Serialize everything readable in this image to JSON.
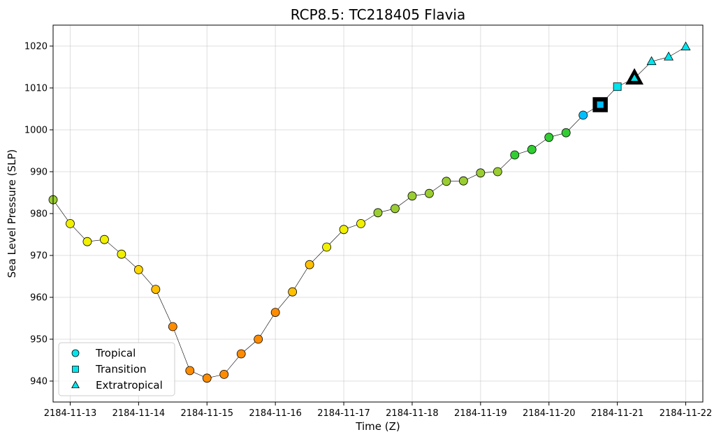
{
  "chart_data": {
    "type": "scatter",
    "title": "RCP8.5: TC218405 Flavia",
    "xlabel": "Time (Z)",
    "ylabel": "Sea Level Pressure (SLP)",
    "x_ticks": [
      "2184-11-13",
      "2184-11-14",
      "2184-11-15",
      "2184-11-16",
      "2184-11-17",
      "2184-11-18",
      "2184-11-19",
      "2184-11-20",
      "2184-11-21",
      "2184-11-22"
    ],
    "y_ticks": [
      940,
      950,
      960,
      970,
      980,
      990,
      1000,
      1010,
      1020
    ],
    "xlim": [
      "2184-11-12 18:00",
      "2184-11-22 06:00"
    ],
    "ylim": [
      935,
      1025
    ],
    "grid": true,
    "legend_position": "lower-left",
    "legend": [
      {
        "label": "Tropical",
        "marker": "circle",
        "color": "#00e5ee"
      },
      {
        "label": "Transition",
        "marker": "square",
        "color": "#00e5ee"
      },
      {
        "label": "Extratropical",
        "marker": "triangle",
        "color": "#00e5ee"
      }
    ],
    "series": [
      {
        "points": [
          {
            "time": "2184-11-12 18:00",
            "slp": 983.3,
            "phase": "tropical",
            "color": "#9acd32"
          },
          {
            "time": "2184-11-13 00:00",
            "slp": 977.6,
            "phase": "tropical",
            "color": "#f0f000"
          },
          {
            "time": "2184-11-13 06:00",
            "slp": 973.3,
            "phase": "tropical",
            "color": "#f0f000"
          },
          {
            "time": "2184-11-13 12:00",
            "slp": 973.8,
            "phase": "tropical",
            "color": "#f0f000"
          },
          {
            "time": "2184-11-13 18:00",
            "slp": 970.3,
            "phase": "tropical",
            "color": "#f0f000"
          },
          {
            "time": "2184-11-14 00:00",
            "slp": 966.6,
            "phase": "tropical",
            "color": "#ffd700"
          },
          {
            "time": "2184-11-14 06:00",
            "slp": 961.9,
            "phase": "tropical",
            "color": "#ffc000"
          },
          {
            "time": "2184-11-14 12:00",
            "slp": 953.0,
            "phase": "tropical",
            "color": "#ff8c00"
          },
          {
            "time": "2184-11-14 18:00",
            "slp": 942.5,
            "phase": "tropical",
            "color": "#ff8c00"
          },
          {
            "time": "2184-11-15 00:00",
            "slp": 940.7,
            "phase": "tropical",
            "color": "#ff8c00"
          },
          {
            "time": "2184-11-15 06:00",
            "slp": 941.6,
            "phase": "tropical",
            "color": "#ff8c00"
          },
          {
            "time": "2184-11-15 12:00",
            "slp": 946.5,
            "phase": "tropical",
            "color": "#ff8c00"
          },
          {
            "time": "2184-11-15 18:00",
            "slp": 950.0,
            "phase": "tropical",
            "color": "#ff8c00"
          },
          {
            "time": "2184-11-16 00:00",
            "slp": 956.4,
            "phase": "tropical",
            "color": "#ff8c00"
          },
          {
            "time": "2184-11-16 06:00",
            "slp": 961.3,
            "phase": "tropical",
            "color": "#ffc000"
          },
          {
            "time": "2184-11-16 12:00",
            "slp": 967.8,
            "phase": "tropical",
            "color": "#ffc000"
          },
          {
            "time": "2184-11-16 18:00",
            "slp": 972.0,
            "phase": "tropical",
            "color": "#f0f000"
          },
          {
            "time": "2184-11-17 00:00",
            "slp": 976.2,
            "phase": "tropical",
            "color": "#f0f000"
          },
          {
            "time": "2184-11-17 06:00",
            "slp": 977.6,
            "phase": "tropical",
            "color": "#f0f000"
          },
          {
            "time": "2184-11-17 12:00",
            "slp": 980.2,
            "phase": "tropical",
            "color": "#9acd32"
          },
          {
            "time": "2184-11-17 18:00",
            "slp": 981.2,
            "phase": "tropical",
            "color": "#9acd32"
          },
          {
            "time": "2184-11-18 00:00",
            "slp": 984.2,
            "phase": "tropical",
            "color": "#9acd32"
          },
          {
            "time": "2184-11-18 06:00",
            "slp": 984.8,
            "phase": "tropical",
            "color": "#9acd32"
          },
          {
            "time": "2184-11-18 12:00",
            "slp": 987.7,
            "phase": "tropical",
            "color": "#9acd32"
          },
          {
            "time": "2184-11-18 18:00",
            "slp": 987.8,
            "phase": "tropical",
            "color": "#9acd32"
          },
          {
            "time": "2184-11-19 00:00",
            "slp": 989.7,
            "phase": "tropical",
            "color": "#9acd32"
          },
          {
            "time": "2184-11-19 06:00",
            "slp": 990.0,
            "phase": "tropical",
            "color": "#9acd32"
          },
          {
            "time": "2184-11-19 12:00",
            "slp": 994.0,
            "phase": "tropical",
            "color": "#32cd32"
          },
          {
            "time": "2184-11-19 18:00",
            "slp": 995.3,
            "phase": "tropical",
            "color": "#32cd32"
          },
          {
            "time": "2184-11-20 00:00",
            "slp": 998.2,
            "phase": "tropical",
            "color": "#32cd32"
          },
          {
            "time": "2184-11-20 06:00",
            "slp": 999.3,
            "phase": "tropical",
            "color": "#32cd32"
          },
          {
            "time": "2184-11-20 12:00",
            "slp": 1003.5,
            "phase": "tropical",
            "color": "#00bfff"
          },
          {
            "time": "2184-11-20 18:00",
            "slp": 1006.0,
            "phase": "transition",
            "color": "#00bfff",
            "highlight": true
          },
          {
            "time": "2184-11-21 00:00",
            "slp": 1010.3,
            "phase": "transition",
            "color": "#00e5ee"
          },
          {
            "time": "2184-11-21 06:00",
            "slp": 1012.3,
            "phase": "extratropical",
            "color": "#00e5ee",
            "highlight": true
          },
          {
            "time": "2184-11-21 12:00",
            "slp": 1016.3,
            "phase": "extratropical",
            "color": "#00e5ee"
          },
          {
            "time": "2184-11-21 18:00",
            "slp": 1017.4,
            "phase": "extratropical",
            "color": "#00e5ee"
          },
          {
            "time": "2184-11-22 00:00",
            "slp": 1019.8,
            "phase": "extratropical",
            "color": "#00e5ee"
          }
        ]
      }
    ]
  }
}
